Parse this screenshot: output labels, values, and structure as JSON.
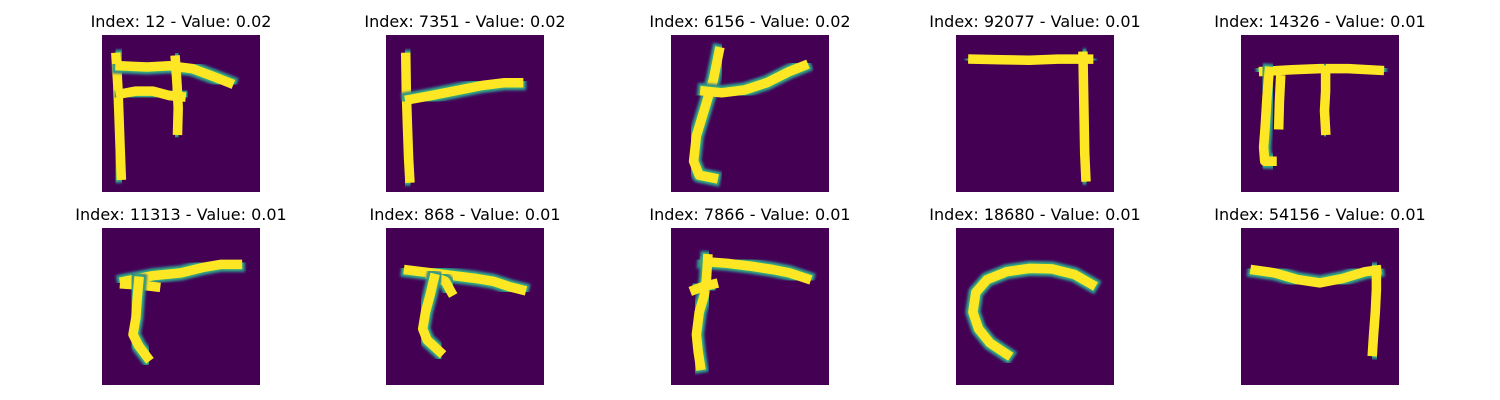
{
  "chart_data": [
    {
      "type": "heatmap",
      "title": "Index: 12 - Value: 0.02",
      "index": 12,
      "value": 0.02,
      "strokes": [
        [
          [
            2.5,
            4
          ],
          [
            2.8,
            9
          ],
          [
            3,
            14
          ],
          [
            3.2,
            20
          ],
          [
            3.4,
            25
          ]
        ],
        [
          [
            3.2,
            5.5
          ],
          [
            8,
            5.7
          ],
          [
            12,
            5.5
          ],
          [
            16,
            6
          ],
          [
            20,
            7.5
          ],
          [
            22.5,
            8.5
          ]
        ],
        [
          [
            3.3,
            10.5
          ],
          [
            6,
            10
          ],
          [
            9,
            10
          ],
          [
            12,
            10.8
          ],
          [
            14,
            11
          ]
        ],
        [
          [
            13,
            4.5
          ],
          [
            13.3,
            9
          ],
          [
            13.5,
            13
          ],
          [
            13.4,
            17
          ]
        ]
      ]
    },
    {
      "type": "heatmap",
      "title": "Index: 7351 - Value: 0.02",
      "index": 7351,
      "value": 0.02,
      "strokes": [
        [
          [
            3.5,
            4
          ],
          [
            3.6,
            10
          ],
          [
            3.8,
            16
          ],
          [
            4,
            22
          ],
          [
            4.2,
            25.5
          ]
        ],
        [
          [
            4.2,
            11.5
          ],
          [
            8,
            10.8
          ],
          [
            13,
            9.8
          ],
          [
            17,
            9
          ],
          [
            21,
            8.5
          ],
          [
            23.5,
            8.5
          ]
        ]
      ]
    },
    {
      "type": "heatmap",
      "title": "Index: 6156 - Value: 0.02",
      "index": 6156,
      "value": 0.02,
      "strokes": [
        [
          [
            8.5,
            3
          ],
          [
            7.5,
            8
          ],
          [
            6,
            13
          ],
          [
            4.5,
            18
          ],
          [
            4,
            22.5
          ],
          [
            5,
            25
          ],
          [
            7.5,
            25.5
          ]
        ],
        [
          [
            6,
            10
          ],
          [
            9,
            10.3
          ],
          [
            13,
            9.8
          ],
          [
            17,
            8.5
          ],
          [
            21,
            6.5
          ],
          [
            23.5,
            5.5
          ]
        ]
      ]
    },
    {
      "type": "heatmap",
      "title": "Index: 92077 - Value: 0.01",
      "index": 92077,
      "value": 0.01,
      "strokes": [
        [
          [
            3,
            4.3
          ],
          [
            8,
            4.4
          ],
          [
            13,
            4.5
          ],
          [
            18,
            4.3
          ],
          [
            23.5,
            4.3
          ]
        ],
        [
          [
            22.5,
            3.8
          ],
          [
            22.6,
            9
          ],
          [
            22.7,
            15
          ],
          [
            22.8,
            21
          ],
          [
            23,
            25.3
          ]
        ]
      ]
    },
    {
      "type": "heatmap",
      "title": "Index: 14326 - Value: 0.01",
      "index": 14326,
      "value": 0.01,
      "strokes": [
        [
          [
            4,
            6.5
          ],
          [
            9,
            6.2
          ],
          [
            14,
            6
          ],
          [
            19,
            6
          ],
          [
            24.5,
            6.3
          ]
        ],
        [
          [
            5,
            6.5
          ],
          [
            4.6,
            11
          ],
          [
            4.3,
            16
          ],
          [
            4,
            20
          ],
          [
            4.2,
            22.5
          ],
          [
            5.5,
            22.5
          ]
        ],
        [
          [
            7,
            8
          ],
          [
            6.8,
            12
          ],
          [
            6.7,
            16
          ]
        ],
        [
          [
            15,
            6.3
          ],
          [
            15,
            10
          ],
          [
            14.8,
            13.5
          ],
          [
            15,
            17
          ]
        ]
      ]
    },
    {
      "type": "heatmap",
      "title": "Index: 11313 - Value: 0.01",
      "index": 11313,
      "value": 0.01,
      "strokes": [
        [
          [
            4,
            9.5
          ],
          [
            9,
            8.5
          ],
          [
            14,
            8
          ],
          [
            18,
            7
          ],
          [
            21,
            6.5
          ],
          [
            24,
            6.5
          ]
        ],
        [
          [
            4,
            10
          ],
          [
            7,
            10.2
          ],
          [
            9.5,
            10.5
          ]
        ],
        [
          [
            6.5,
            9.5
          ],
          [
            6.2,
            13
          ],
          [
            6,
            16
          ],
          [
            5.5,
            19
          ],
          [
            6.5,
            21
          ],
          [
            8,
            23
          ]
        ]
      ]
    },
    {
      "type": "heatmap",
      "title": "Index: 868 - Value: 0.01",
      "index": 868,
      "value": 0.01,
      "strokes": [
        [
          [
            4,
            7.5
          ],
          [
            8,
            8
          ],
          [
            12,
            8.5
          ],
          [
            16,
            9
          ],
          [
            19,
            9.5
          ],
          [
            22,
            10.5
          ],
          [
            24,
            11
          ]
        ],
        [
          [
            8,
            8.5
          ],
          [
            10.5,
            9.5
          ],
          [
            11.5,
            11.3
          ]
        ],
        [
          [
            8.5,
            9
          ],
          [
            7.8,
            12
          ],
          [
            7,
            15
          ],
          [
            6.5,
            18
          ],
          [
            7.3,
            20
          ],
          [
            9.5,
            22
          ]
        ]
      ]
    },
    {
      "type": "heatmap",
      "title": "Index: 7866 - Value: 0.01",
      "index": 7866,
      "value": 0.01,
      "strokes": [
        [
          [
            6,
            6
          ],
          [
            10,
            6.3
          ],
          [
            14,
            6.8
          ],
          [
            18,
            7.4
          ],
          [
            21,
            8
          ],
          [
            24,
            9
          ]
        ],
        [
          [
            6.5,
            5.5
          ],
          [
            6.3,
            9
          ],
          [
            5.9,
            12
          ],
          [
            5,
            15
          ],
          [
            4.5,
            19
          ],
          [
            4.8,
            22
          ],
          [
            5.2,
            24.5
          ]
        ],
        [
          [
            4.2,
            11
          ],
          [
            5.5,
            10.5
          ],
          [
            7.5,
            10
          ]
        ]
      ]
    },
    {
      "type": "heatmap",
      "title": "Index: 18680 - Value: 0.01",
      "index": 18680,
      "value": 0.01,
      "strokes": [
        [
          [
            24,
            10
          ],
          [
            21,
            8.3
          ],
          [
            17,
            7.3
          ],
          [
            13,
            7.2
          ],
          [
            9,
            7.8
          ],
          [
            5.5,
            9.2
          ],
          [
            3.5,
            11.5
          ],
          [
            3,
            15
          ],
          [
            4,
            18
          ],
          [
            6,
            20.5
          ],
          [
            9,
            22.5
          ]
        ]
      ]
    },
    {
      "type": "heatmap",
      "title": "Index: 54156 - Value: 0.01",
      "index": 54156,
      "value": 0.01,
      "strokes": [
        [
          [
            2.5,
            7.5
          ],
          [
            6,
            8
          ],
          [
            10,
            9.2
          ],
          [
            14,
            9.8
          ],
          [
            18,
            9
          ],
          [
            22,
            7.8
          ],
          [
            24,
            7.5
          ]
        ],
        [
          [
            24,
            7.5
          ],
          [
            24,
            11
          ],
          [
            23.8,
            15
          ],
          [
            23.5,
            19
          ],
          [
            23.3,
            22
          ]
        ]
      ]
    }
  ],
  "colormap": {
    "background": "#440154",
    "mid1": "#31688e",
    "mid2": "#35b779",
    "max": "#fde725",
    "page": "#ffffff"
  }
}
